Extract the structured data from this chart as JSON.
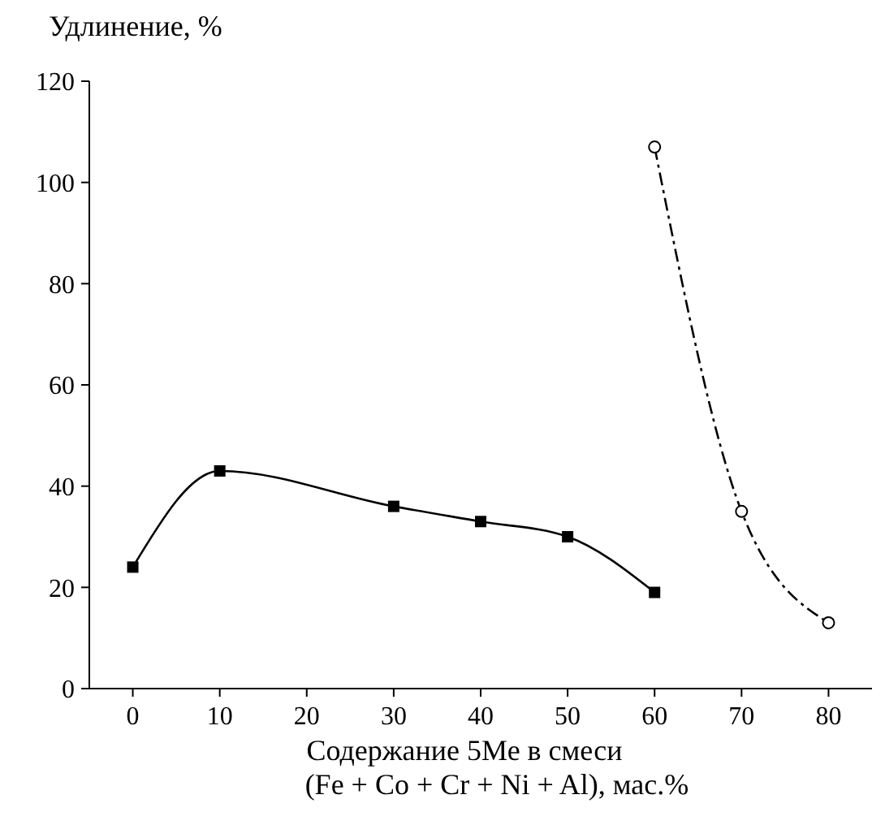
{
  "chart_data": {
    "type": "line",
    "xlabel": "Содержание 5Ме в смеси\n(Fe + Co + Cr + Ni + Al), мас.%",
    "ylabel": "Удлинение, %",
    "xlim": [
      -5,
      85
    ],
    "xticks": [
      0,
      10,
      20,
      30,
      40,
      50,
      60,
      70,
      80
    ],
    "ylim": [
      0,
      120
    ],
    "yticks": [
      0,
      20,
      40,
      60,
      80,
      100,
      120
    ],
    "grid": false,
    "series": [
      {
        "color": "#000000",
        "x": [
          0,
          10,
          30,
          40,
          50,
          60
        ],
        "values": [
          24,
          43,
          36,
          33,
          30,
          19
        ],
        "marker": "square",
        "line_style": "solid"
      },
      {
        "color": "#000000",
        "x": [
          60,
          70,
          80
        ],
        "values": [
          107,
          35,
          13
        ],
        "marker": "circle",
        "line_style": "dashed"
      }
    ]
  }
}
